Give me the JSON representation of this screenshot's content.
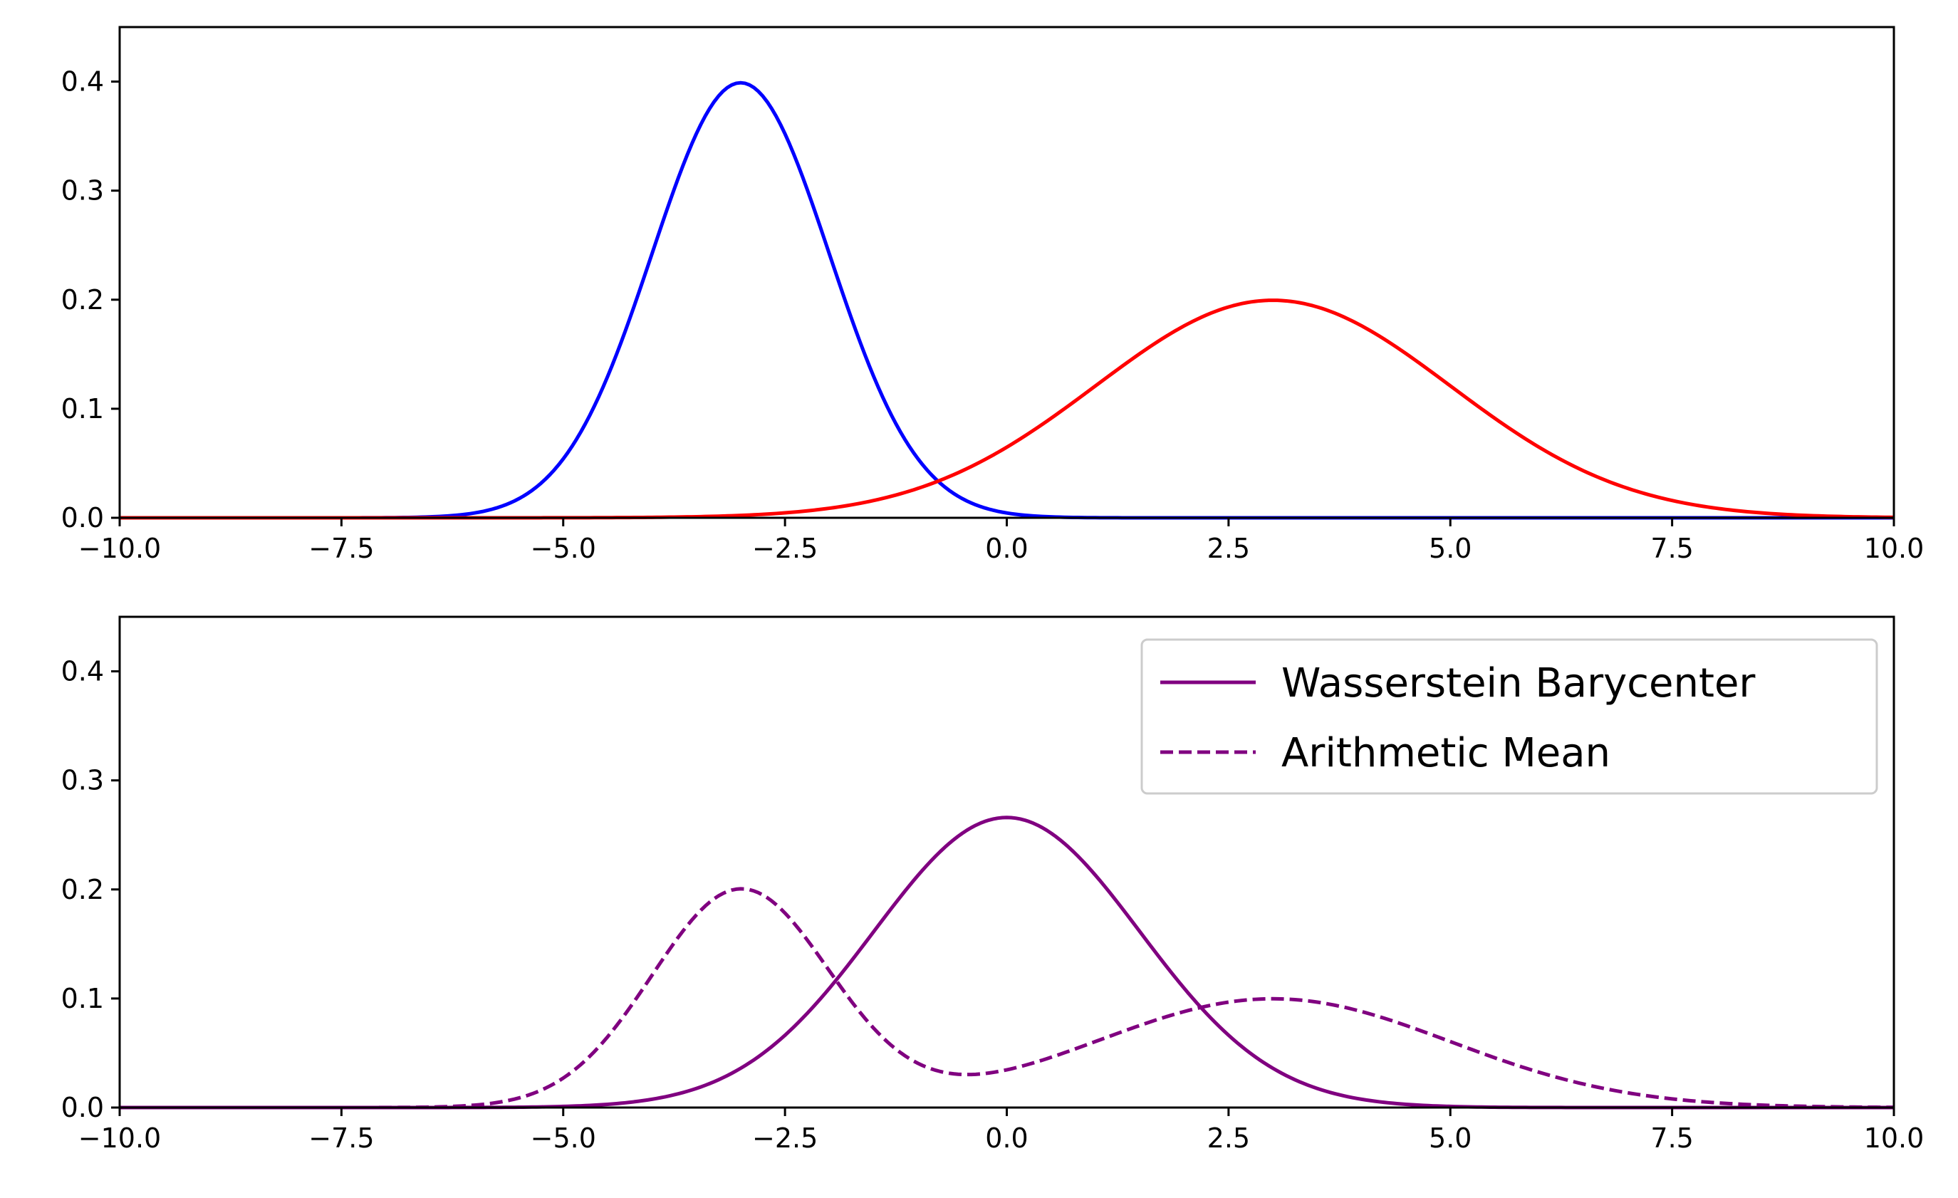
{
  "chart_data": [
    {
      "type": "line",
      "title": "",
      "xlabel": "",
      "ylabel": "",
      "xlim": [
        -10,
        10
      ],
      "ylim": [
        0,
        0.45
      ],
      "grid": false,
      "x_ticks": [
        "−10.0",
        "−7.5",
        "−5.0",
        "−2.5",
        "0.0",
        "2.5",
        "5.0",
        "7.5",
        "10.0"
      ],
      "x_tick_values": [
        -10,
        -7.5,
        -5,
        -2.5,
        0,
        2.5,
        5,
        7.5,
        10
      ],
      "y_ticks": [
        "0.0",
        "0.1",
        "0.2",
        "0.3",
        "0.4"
      ],
      "y_tick_values": [
        0,
        0.1,
        0.2,
        0.3,
        0.4
      ],
      "series": [
        {
          "color": "#0000ff",
          "linestyle": "solid",
          "distribution": "normal",
          "mean": -3,
          "std": 1,
          "peak": 0.399
        },
        {
          "color": "#ff0000",
          "linestyle": "solid",
          "distribution": "normal",
          "mean": 3,
          "std": 2,
          "peak": 0.199
        }
      ]
    },
    {
      "type": "line",
      "title": "",
      "xlabel": "",
      "ylabel": "",
      "xlim": [
        -10,
        10
      ],
      "ylim": [
        0,
        0.45
      ],
      "grid": false,
      "legend_position": "top-right",
      "x_ticks": [
        "−10.0",
        "−7.5",
        "−5.0",
        "−2.5",
        "0.0",
        "2.5",
        "5.0",
        "7.5",
        "10.0"
      ],
      "x_tick_values": [
        -10,
        -7.5,
        -5,
        -2.5,
        0,
        2.5,
        5,
        7.5,
        10
      ],
      "y_ticks": [
        "0.0",
        "0.1",
        "0.2",
        "0.3",
        "0.4"
      ],
      "y_tick_values": [
        0,
        0.1,
        0.2,
        0.3,
        0.4
      ],
      "series": [
        {
          "name": "Wasserstein Barycenter",
          "color": "#800080",
          "linestyle": "solid",
          "distribution": "normal",
          "mean": 0,
          "std": 1.5,
          "peak": 0.266
        },
        {
          "name": "Arithmetic Mean",
          "color": "#800080",
          "linestyle": "dashed",
          "distribution": "mixture",
          "components": [
            {
              "weight": 0.5,
              "mean": -3,
              "std": 1
            },
            {
              "weight": 0.5,
              "mean": 3,
              "std": 2
            }
          ]
        }
      ]
    }
  ]
}
